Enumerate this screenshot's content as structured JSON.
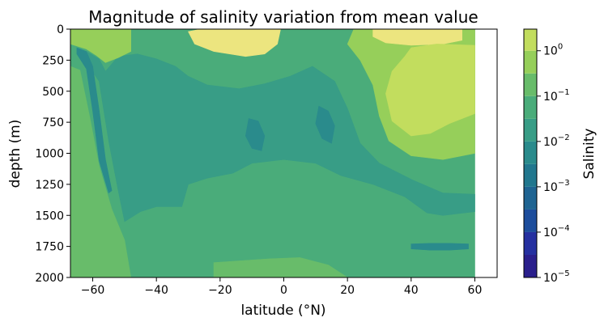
{
  "chart_data": {
    "type": "contourf",
    "title": "Magnitude of salinity variation from mean value",
    "xlabel": "latitude (°N)",
    "ylabel": "depth (m)",
    "xlim": [
      -67,
      67
    ],
    "ylim": [
      2000,
      0
    ],
    "x_ticks": [
      -60,
      -40,
      -20,
      0,
      20,
      40,
      60
    ],
    "x_tick_labels": [
      "−60",
      "−40",
      "−20",
      "0",
      "20",
      "40",
      "60"
    ],
    "y_ticks": [
      0,
      250,
      500,
      750,
      1000,
      1250,
      1500,
      1750,
      2000
    ],
    "y_tick_labels": [
      "0",
      "250",
      "500",
      "750",
      "1000",
      "1250",
      "1500",
      "1750",
      "2000"
    ],
    "data_extent_lat": [
      -67,
      60
    ],
    "colorbar": {
      "label": "Salinity",
      "scale": "log",
      "min": 1e-05,
      "max": 3,
      "ticks": [
        {
          "value": 1e-05,
          "base": "10",
          "exp": "−5"
        },
        {
          "value": 0.0001,
          "base": "10",
          "exp": "−4"
        },
        {
          "value": 0.001,
          "base": "10",
          "exp": "−3"
        },
        {
          "value": 0.01,
          "base": "10",
          "exp": "−2"
        },
        {
          "value": 0.1,
          "base": "10",
          "exp": "−1"
        },
        {
          "value": 1,
          "base": "10",
          "exp": "0"
        }
      ],
      "levels": [
        1e-05,
        3.16e-05,
        0.0001,
        0.000316,
        0.001,
        0.00316,
        0.01,
        0.0316,
        0.1,
        0.316,
        1,
        3
      ],
      "colors": [
        "#2a1f8c",
        "#2530a0",
        "#1d4d9c",
        "#1f6492",
        "#21778e",
        "#2a8b8c",
        "#389d86",
        "#4aac7a",
        "#68bc6a",
        "#96cf5a",
        "#c2dd5e",
        "#ece57f"
      ]
    },
    "regions": [
      {
        "name": "background-band",
        "level": 7
      },
      {
        "name": "deep-southern-ocean",
        "level": 8
      },
      {
        "name": "tropical-bottom",
        "level": 8
      },
      {
        "name": "intermediate-water-band",
        "level": 6
      },
      {
        "name": "north-upper-ocean",
        "level": 9
      },
      {
        "name": "subtropical-south-surface",
        "level": 9
      },
      {
        "name": "surface-south-high",
        "level": 11
      },
      {
        "name": "surface-north-high",
        "level": 11
      },
      {
        "name": "north-subtropical-gyre",
        "level": 10
      },
      {
        "name": "antarctic-slope-ribbon",
        "level": 5
      },
      {
        "name": "equatorial-core-south",
        "level": 5
      },
      {
        "name": "equatorial-core-north",
        "level": 5
      },
      {
        "name": "deep-north-streak",
        "level": 5
      }
    ]
  }
}
